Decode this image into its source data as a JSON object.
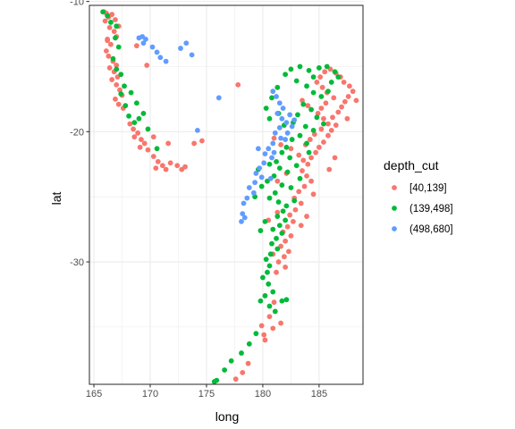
{
  "chart_data": {
    "type": "scatter",
    "xlabel": "long",
    "ylabel": "lat",
    "xlim": [
      164.6,
      188.9
    ],
    "ylim": [
      -39.4,
      -10.3
    ],
    "x_ticks": [
      165,
      170,
      175,
      180,
      185
    ],
    "y_ticks": [
      -10,
      -20,
      -30
    ],
    "grid": true,
    "legend": {
      "title": "depth_cut",
      "position": "right",
      "entries": [
        "[40,139]",
        "(139,498]",
        "(498,680]"
      ]
    },
    "colors": {
      "[40,139]": "#F8766D",
      "(139,498]": "#00BA38",
      "(498,680]": "#619CFF"
    },
    "series": [
      {
        "name": "[40,139]",
        "points": [
          [
            165.9,
            -10.8
          ],
          [
            166.1,
            -10.9
          ],
          [
            166.3,
            -11.2
          ],
          [
            166.6,
            -11.0
          ],
          [
            166.9,
            -11.4
          ],
          [
            167.2,
            -11.9
          ],
          [
            166.0,
            -11.5
          ],
          [
            166.4,
            -12.0
          ],
          [
            166.8,
            -12.3
          ],
          [
            167.0,
            -12.7
          ],
          [
            166.2,
            -12.9
          ],
          [
            166.5,
            -13.3
          ],
          [
            166.1,
            -13.8
          ],
          [
            166.3,
            -14.2
          ],
          [
            166.7,
            -14.6
          ],
          [
            167.0,
            -14.9
          ],
          [
            166.4,
            -15.1
          ],
          [
            166.8,
            -15.4
          ],
          [
            167.1,
            -15.8
          ],
          [
            166.6,
            -16.0
          ],
          [
            167.0,
            -16.4
          ],
          [
            167.3,
            -16.8
          ],
          [
            167.5,
            -17.2
          ],
          [
            166.9,
            -17.5
          ],
          [
            167.2,
            -17.9
          ],
          [
            167.6,
            -18.2
          ],
          [
            168.2,
            -19.4
          ],
          [
            168.5,
            -19.8
          ],
          [
            168.9,
            -20.1
          ],
          [
            168.6,
            -20.4
          ],
          [
            169.2,
            -20.6
          ],
          [
            169.5,
            -20.9
          ],
          [
            169.1,
            -21.2
          ],
          [
            169.8,
            -21.4
          ],
          [
            170.3,
            -21.9
          ],
          [
            170.7,
            -22.3
          ],
          [
            171.1,
            -22.6
          ],
          [
            170.5,
            -22.8
          ],
          [
            171.4,
            -22.9
          ],
          [
            171.8,
            -22.4
          ],
          [
            172.4,
            -22.6
          ],
          [
            172.8,
            -22.9
          ],
          [
            173.1,
            -22.7
          ],
          [
            171.6,
            -20.9
          ],
          [
            170.3,
            -20.4
          ],
          [
            173.9,
            -20.9
          ],
          [
            174.6,
            -20.7
          ],
          [
            168.8,
            -13.4
          ],
          [
            169.7,
            -14.9
          ],
          [
            166.2,
            -13.0
          ],
          [
            177.8,
            -16.4
          ],
          [
            181.0,
            -20.5
          ],
          [
            181.6,
            -21.0
          ],
          [
            182.5,
            -21.3
          ],
          [
            183.2,
            -21.8
          ],
          [
            183.6,
            -22.2
          ],
          [
            184.0,
            -22.5
          ],
          [
            184.3,
            -22.0
          ],
          [
            184.7,
            -21.6
          ],
          [
            185.0,
            -21.2
          ],
          [
            185.4,
            -20.8
          ],
          [
            185.8,
            -20.3
          ],
          [
            186.1,
            -19.9
          ],
          [
            186.5,
            -19.5
          ],
          [
            186.2,
            -18.9
          ],
          [
            186.7,
            -18.5
          ],
          [
            187.0,
            -18.1
          ],
          [
            187.3,
            -17.7
          ],
          [
            187.6,
            -17.3
          ],
          [
            188.0,
            -16.9
          ],
          [
            187.7,
            -16.5
          ],
          [
            187.2,
            -16.2
          ],
          [
            186.9,
            -15.8
          ],
          [
            186.5,
            -15.5
          ],
          [
            186.0,
            -15.2
          ],
          [
            185.5,
            -15.4
          ],
          [
            185.1,
            -15.8
          ],
          [
            184.8,
            -16.2
          ],
          [
            185.3,
            -16.6
          ],
          [
            185.7,
            -17.0
          ],
          [
            186.3,
            -17.4
          ],
          [
            185.6,
            -17.8
          ],
          [
            185.2,
            -18.2
          ],
          [
            184.9,
            -18.6
          ],
          [
            185.4,
            -19.0
          ],
          [
            185.8,
            -19.4
          ],
          [
            185.2,
            -19.8
          ],
          [
            184.6,
            -20.2
          ],
          [
            184.2,
            -20.6
          ],
          [
            183.8,
            -21.0
          ],
          [
            183.5,
            -23.0
          ],
          [
            183.9,
            -23.4
          ],
          [
            184.3,
            -23.8
          ],
          [
            183.7,
            -24.2
          ],
          [
            183.2,
            -24.6
          ],
          [
            182.8,
            -25.1
          ],
          [
            183.4,
            -25.5
          ],
          [
            182.9,
            -26.0
          ],
          [
            182.4,
            -26.4
          ],
          [
            182.7,
            -26.9
          ],
          [
            182.2,
            -27.3
          ],
          [
            181.8,
            -27.7
          ],
          [
            182.5,
            -28.0
          ],
          [
            182.0,
            -28.4
          ],
          [
            181.6,
            -28.8
          ],
          [
            182.3,
            -29.2
          ],
          [
            181.9,
            -29.6
          ],
          [
            181.4,
            -30.0
          ],
          [
            182.0,
            -30.4
          ],
          [
            181.2,
            -30.8
          ],
          [
            180.6,
            -34.2
          ],
          [
            180.9,
            -35.1
          ],
          [
            181.6,
            -34.7
          ],
          [
            180.2,
            -36.0
          ],
          [
            179.9,
            -34.9
          ],
          [
            178.7,
            -37.8
          ],
          [
            178.2,
            -38.5
          ],
          [
            177.6,
            -39.0
          ],
          [
            183.4,
            -27.2
          ],
          [
            183.9,
            -26.5
          ],
          [
            184.5,
            -24.8
          ],
          [
            181.3,
            -26.2
          ],
          [
            180.5,
            -26.8
          ],
          [
            184.0,
            -18.0
          ],
          [
            183.5,
            -17.6
          ],
          [
            185.9,
            -22.9
          ],
          [
            186.4,
            -22.0
          ],
          [
            187.5,
            -19.0
          ],
          [
            188.3,
            -17.6
          ],
          [
            181.3,
            -23.8
          ],
          [
            182.1,
            -23.2
          ],
          [
            180.9,
            -29.4
          ],
          [
            181.0,
            -33.1
          ],
          [
            180.1,
            -35.6
          ]
        ]
      },
      {
        "name": "(139,498]",
        "points": [
          [
            165.8,
            -10.8
          ],
          [
            166.2,
            -11.1
          ],
          [
            167.0,
            -11.9
          ],
          [
            166.5,
            -11.6
          ],
          [
            166.9,
            -12.8
          ],
          [
            167.2,
            -13.5
          ],
          [
            166.7,
            -14.4
          ],
          [
            167.0,
            -15.2
          ],
          [
            167.4,
            -15.6
          ],
          [
            167.7,
            -16.5
          ],
          [
            167.4,
            -17.1
          ],
          [
            167.8,
            -18.0
          ],
          [
            168.1,
            -18.8
          ],
          [
            168.6,
            -19.3
          ],
          [
            169.0,
            -19.0
          ],
          [
            169.4,
            -18.6
          ],
          [
            168.8,
            -17.8
          ],
          [
            168.3,
            -17.0
          ],
          [
            169.8,
            -19.8
          ],
          [
            170.6,
            -21.3
          ],
          [
            182.5,
            -15.2
          ],
          [
            183.3,
            -15.0
          ],
          [
            184.1,
            -15.3
          ],
          [
            185.0,
            -15.1
          ],
          [
            185.7,
            -15.0
          ],
          [
            186.4,
            -15.4
          ],
          [
            183.0,
            -16.1
          ],
          [
            183.9,
            -16.5
          ],
          [
            184.5,
            -17.0
          ],
          [
            185.2,
            -17.3
          ],
          [
            183.6,
            -17.9
          ],
          [
            184.3,
            -18.3
          ],
          [
            183.1,
            -18.7
          ],
          [
            182.7,
            -19.3
          ],
          [
            183.8,
            -19.6
          ],
          [
            184.5,
            -19.9
          ],
          [
            183.3,
            -20.3
          ],
          [
            182.6,
            -20.6
          ],
          [
            183.9,
            -20.9
          ],
          [
            182.1,
            -21.2
          ],
          [
            181.7,
            -21.6
          ],
          [
            182.4,
            -22.0
          ],
          [
            181.2,
            -22.3
          ],
          [
            180.6,
            -22.5
          ],
          [
            181.5,
            -22.8
          ],
          [
            182.2,
            -23.1
          ],
          [
            181.0,
            -23.4
          ],
          [
            180.4,
            -23.8
          ],
          [
            181.7,
            -24.1
          ],
          [
            182.5,
            -24.3
          ],
          [
            181.1,
            -24.7
          ],
          [
            180.6,
            -25.1
          ],
          [
            181.4,
            -25.4
          ],
          [
            182.1,
            -25.7
          ],
          [
            181.8,
            -26.1
          ],
          [
            181.3,
            -26.5
          ],
          [
            182.0,
            -26.8
          ],
          [
            181.5,
            -27.2
          ],
          [
            180.9,
            -27.5
          ],
          [
            181.7,
            -27.8
          ],
          [
            181.2,
            -28.2
          ],
          [
            180.8,
            -28.6
          ],
          [
            181.3,
            -29.0
          ],
          [
            180.7,
            -29.4
          ],
          [
            180.3,
            -29.8
          ],
          [
            180.6,
            -30.3
          ],
          [
            180.4,
            -30.8
          ],
          [
            180.0,
            -31.2
          ],
          [
            180.5,
            -31.7
          ],
          [
            180.9,
            -32.3
          ],
          [
            180.2,
            -32.6
          ],
          [
            179.8,
            -33.0
          ],
          [
            180.6,
            -33.4
          ],
          [
            181.1,
            -33.8
          ],
          [
            181.7,
            -33.0
          ],
          [
            182.1,
            -32.9
          ],
          [
            179.4,
            -35.5
          ],
          [
            178.8,
            -36.3
          ],
          [
            178.1,
            -37.0
          ],
          [
            177.2,
            -37.6
          ],
          [
            176.6,
            -38.3
          ],
          [
            175.9,
            -39.1
          ],
          [
            175.7,
            -39.2
          ],
          [
            184.5,
            -15.8
          ],
          [
            186.1,
            -16.2
          ],
          [
            185.8,
            -16.9
          ],
          [
            184.8,
            -18.9
          ],
          [
            185.4,
            -19.4
          ],
          [
            179.6,
            -22.9
          ],
          [
            179.9,
            -24.2
          ],
          [
            179.3,
            -25.0
          ],
          [
            183.0,
            -22.6
          ],
          [
            182.8,
            -25.3
          ],
          [
            180.2,
            -26.9
          ],
          [
            179.8,
            -27.6
          ],
          [
            183.3,
            -23.6
          ],
          [
            184.1,
            -21.6
          ],
          [
            182.0,
            -15.6
          ],
          [
            181.3,
            -16.6
          ],
          [
            180.8,
            -17.4
          ],
          [
            180.3,
            -18.2
          ],
          [
            181.4,
            -18.6
          ],
          [
            180.6,
            -19.0
          ],
          [
            181.9,
            -19.5
          ],
          [
            186.7,
            -15.8
          ]
        ]
      },
      {
        "name": "(498,680]",
        "points": [
          [
            169.0,
            -12.8
          ],
          [
            169.3,
            -12.7
          ],
          [
            169.6,
            -12.9
          ],
          [
            169.4,
            -13.2
          ],
          [
            170.2,
            -13.5
          ],
          [
            170.6,
            -13.9
          ],
          [
            170.9,
            -14.3
          ],
          [
            171.4,
            -14.6
          ],
          [
            172.7,
            -13.6
          ],
          [
            173.2,
            -13.2
          ],
          [
            173.7,
            -14.1
          ],
          [
            174.2,
            -19.9
          ],
          [
            176.1,
            -17.4
          ],
          [
            180.9,
            -16.9
          ],
          [
            181.2,
            -17.3
          ],
          [
            181.5,
            -17.8
          ],
          [
            181.8,
            -18.2
          ],
          [
            181.3,
            -18.6
          ],
          [
            181.7,
            -19.0
          ],
          [
            182.1,
            -19.3
          ],
          [
            181.5,
            -19.7
          ],
          [
            181.1,
            -20.1
          ],
          [
            181.6,
            -20.5
          ],
          [
            180.9,
            -20.9
          ],
          [
            180.5,
            -21.3
          ],
          [
            180.2,
            -21.7
          ],
          [
            180.8,
            -22.0
          ],
          [
            180.1,
            -22.4
          ],
          [
            179.7,
            -22.8
          ],
          [
            179.4,
            -23.2
          ],
          [
            179.9,
            -23.5
          ],
          [
            179.3,
            -23.9
          ],
          [
            178.8,
            -24.3
          ],
          [
            179.2,
            -24.7
          ],
          [
            178.6,
            -25.1
          ],
          [
            178.3,
            -25.5
          ],
          [
            178.2,
            -26.3
          ],
          [
            178.4,
            -26.6
          ],
          [
            178.1,
            -26.9
          ],
          [
            182.4,
            -18.7
          ],
          [
            182.8,
            -19.1
          ],
          [
            182.6,
            -19.6
          ],
          [
            182.2,
            -20.1
          ],
          [
            182.0,
            -20.6
          ],
          [
            181.0,
            -21.6
          ],
          [
            180.7,
            -23.6
          ],
          [
            179.6,
            -21.3
          ]
        ]
      }
    ]
  }
}
